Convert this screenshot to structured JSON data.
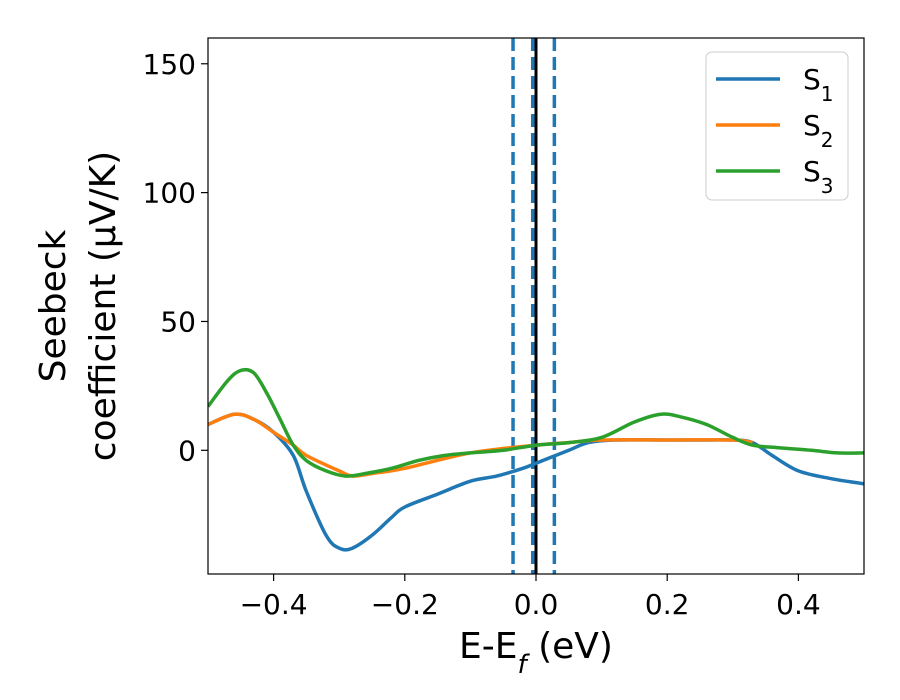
{
  "chart_data": {
    "type": "line",
    "title": "",
    "xlabel": {
      "main": "E-E",
      "sub": "f",
      "unit": " (eV)"
    },
    "ylabel": {
      "line1": "Seebeck",
      "line2": "coefficient  (μV/K)"
    },
    "xlim": [
      -0.5,
      0.5
    ],
    "ylim": [
      -48,
      160
    ],
    "xticks": [
      -0.4,
      -0.2,
      0.0,
      0.2,
      0.4
    ],
    "xtick_labels": [
      "−0.4",
      "−0.2",
      "0.0",
      "0.2",
      "0.4"
    ],
    "yticks": [
      0,
      50,
      100,
      150
    ],
    "ytick_labels": [
      "0",
      "50",
      "100",
      "150"
    ],
    "grid": false,
    "legend_position": "top-right",
    "series": [
      {
        "name": "S",
        "sub": "1",
        "color": "#1f77b4",
        "x": [
          -0.5,
          -0.46,
          -0.43,
          -0.4,
          -0.37,
          -0.35,
          -0.32,
          -0.3,
          -0.28,
          -0.25,
          -0.22,
          -0.2,
          -0.15,
          -0.1,
          -0.06,
          -0.02,
          0.0,
          0.02,
          0.05,
          0.08,
          0.12,
          0.2,
          0.26,
          0.3,
          0.33,
          0.36,
          0.4,
          0.45,
          0.5
        ],
        "y": [
          10,
          14,
          12,
          7,
          -2,
          -16,
          -33,
          -38,
          -38,
          -33,
          -26,
          -22,
          -17,
          -12,
          -10,
          -7,
          -5,
          -3,
          0,
          3,
          4,
          4,
          4,
          4,
          3,
          -2,
          -8,
          -11,
          -13
        ]
      },
      {
        "name": "S",
        "sub": "2",
        "color": "#ff7f0e",
        "x": [
          -0.5,
          -0.46,
          -0.43,
          -0.4,
          -0.37,
          -0.35,
          -0.3,
          -0.28,
          -0.25,
          -0.2,
          -0.1,
          0.0,
          0.05,
          0.1,
          0.2,
          0.3,
          0.33
        ],
        "y": [
          10,
          14,
          12,
          7,
          2,
          -2,
          -8,
          -10,
          -9,
          -7,
          -1,
          2,
          3,
          4,
          4,
          4,
          3
        ]
      },
      {
        "name": "S",
        "sub": "3",
        "color": "#2ca02c",
        "x": [
          -0.5,
          -0.47,
          -0.45,
          -0.43,
          -0.41,
          -0.39,
          -0.37,
          -0.35,
          -0.32,
          -0.29,
          -0.26,
          -0.22,
          -0.18,
          -0.14,
          -0.1,
          -0.05,
          0.0,
          0.05,
          0.1,
          0.15,
          0.19,
          0.22,
          0.26,
          0.3,
          0.33,
          0.37,
          0.42,
          0.46,
          0.5
        ],
        "y": [
          17,
          27,
          31,
          30,
          22,
          12,
          2,
          -4,
          -8,
          -10,
          -9,
          -7,
          -4,
          -2,
          -1,
          0,
          2,
          3,
          5,
          11,
          14,
          13,
          10,
          5,
          2,
          1,
          0,
          -1,
          -1
        ]
      }
    ],
    "vlines": [
      {
        "x": -0.035,
        "color": "#1f77b4",
        "style": "dashed"
      },
      {
        "x": -0.005,
        "color": "#1f77b4",
        "style": "dashed"
      },
      {
        "x": 0.028,
        "color": "#1f77b4",
        "style": "dashed"
      },
      {
        "x": 0.0,
        "color": "#000000",
        "style": "solid"
      }
    ]
  }
}
